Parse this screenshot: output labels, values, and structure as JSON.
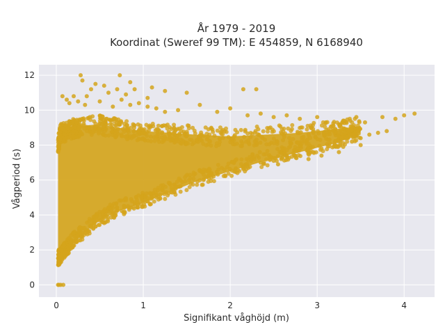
{
  "chart_data": {
    "type": "scatter",
    "title_line1": "År 1979 - 2019",
    "title_line2": "Koordinat (Sweref 99 TM): E 454859, N 6168940",
    "xlabel": "Signifikant våghöjd (m)",
    "ylabel": "Vågperiod (s)",
    "xlim": [
      -0.2,
      4.35
    ],
    "ylim": [
      -0.7,
      12.6
    ],
    "x_ticks": [
      0,
      1,
      2,
      3,
      4
    ],
    "x_tick_labels": [
      "0",
      "1",
      "2",
      "3",
      "4"
    ],
    "y_ticks": [
      0,
      2,
      4,
      6,
      8,
      10,
      12
    ],
    "y_tick_labels": [
      "0",
      "2",
      "4",
      "6",
      "8",
      "10",
      "12"
    ],
    "grid": true,
    "legend": false,
    "marker_color": "#D4A41C",
    "plot_background": "#E8E8EF",
    "point_cloud_envelope": [
      {
        "x": 0.02,
        "y_lower": 1.1,
        "y_upper": 8.6
      },
      {
        "x": 0.05,
        "y_lower": 1.2,
        "y_upper": 9.2
      },
      {
        "x": 0.1,
        "y_lower": 1.6,
        "y_upper": 9.3
      },
      {
        "x": 0.2,
        "y_lower": 2.1,
        "y_upper": 9.5
      },
      {
        "x": 0.3,
        "y_lower": 2.6,
        "y_upper": 9.6
      },
      {
        "x": 0.5,
        "y_lower": 3.4,
        "y_upper": 9.7
      },
      {
        "x": 0.7,
        "y_lower": 3.9,
        "y_upper": 9.5
      },
      {
        "x": 1.0,
        "y_lower": 4.4,
        "y_upper": 9.3
      },
      {
        "x": 1.3,
        "y_lower": 5.0,
        "y_upper": 9.2
      },
      {
        "x": 1.6,
        "y_lower": 5.6,
        "y_upper": 9.1
      },
      {
        "x": 2.0,
        "y_lower": 6.2,
        "y_upper": 9.0
      },
      {
        "x": 2.4,
        "y_lower": 6.8,
        "y_upper": 9.1
      },
      {
        "x": 2.8,
        "y_lower": 7.3,
        "y_upper": 9.2
      },
      {
        "x": 3.2,
        "y_lower": 7.8,
        "y_upper": 9.4
      },
      {
        "x": 3.5,
        "y_lower": 8.3,
        "y_upper": 9.6
      }
    ],
    "points": [
      [
        0.02,
        0.0
      ],
      [
        0.05,
        0.0
      ],
      [
        0.08,
        0.0
      ],
      [
        0.03,
        0.0
      ],
      [
        0.28,
        12.0
      ],
      [
        0.73,
        12.0
      ],
      [
        0.3,
        11.7
      ],
      [
        0.45,
        11.5
      ],
      [
        0.4,
        11.2
      ],
      [
        0.55,
        11.4
      ],
      [
        0.85,
        11.6
      ],
      [
        0.7,
        11.2
      ],
      [
        1.1,
        11.3
      ],
      [
        1.25,
        11.1
      ],
      [
        1.5,
        11.0
      ],
      [
        2.3,
        11.2
      ],
      [
        2.15,
        11.2
      ],
      [
        0.35,
        10.8
      ],
      [
        0.8,
        10.9
      ],
      [
        1.05,
        10.7
      ],
      [
        0.6,
        11.0
      ],
      [
        0.9,
        11.2
      ],
      [
        0.07,
        10.8
      ],
      [
        0.12,
        10.6
      ],
      [
        0.2,
        10.8
      ],
      [
        0.15,
        10.4
      ],
      [
        0.25,
        10.5
      ],
      [
        0.33,
        10.3
      ],
      [
        0.5,
        10.5
      ],
      [
        0.65,
        10.2
      ],
      [
        0.75,
        10.6
      ],
      [
        0.85,
        10.3
      ],
      [
        0.95,
        10.4
      ],
      [
        1.05,
        10.2
      ],
      [
        1.15,
        10.1
      ],
      [
        1.25,
        9.9
      ],
      [
        1.4,
        10.0
      ],
      [
        1.65,
        10.3
      ],
      [
        1.85,
        9.9
      ],
      [
        2.0,
        10.1
      ],
      [
        2.2,
        9.7
      ],
      [
        2.35,
        9.8
      ],
      [
        2.5,
        9.6
      ],
      [
        2.65,
        9.7
      ],
      [
        2.8,
        9.5
      ],
      [
        3.0,
        9.6
      ],
      [
        3.1,
        9.3
      ],
      [
        3.3,
        9.4
      ],
      [
        3.45,
        9.6
      ],
      [
        3.55,
        9.3
      ],
      [
        3.75,
        9.6
      ],
      [
        3.9,
        9.5
      ],
      [
        4.0,
        9.7
      ],
      [
        4.12,
        9.8
      ],
      [
        2.2,
        6.8
      ],
      [
        2.35,
        7.0
      ],
      [
        2.5,
        7.1
      ],
      [
        2.6,
        7.3
      ],
      [
        2.75,
        7.4
      ],
      [
        2.9,
        7.6
      ],
      [
        3.05,
        7.8
      ],
      [
        3.2,
        8.0
      ],
      [
        3.3,
        7.9
      ],
      [
        3.4,
        8.2
      ],
      [
        3.5,
        8.4
      ],
      [
        3.6,
        8.6
      ],
      [
        3.7,
        8.7
      ],
      [
        3.8,
        8.8
      ],
      [
        2.55,
        6.9
      ],
      [
        3.05,
        7.4
      ],
      [
        2.9,
        7.2
      ],
      [
        3.25,
        7.6
      ],
      [
        3.5,
        8.0
      ]
    ]
  }
}
